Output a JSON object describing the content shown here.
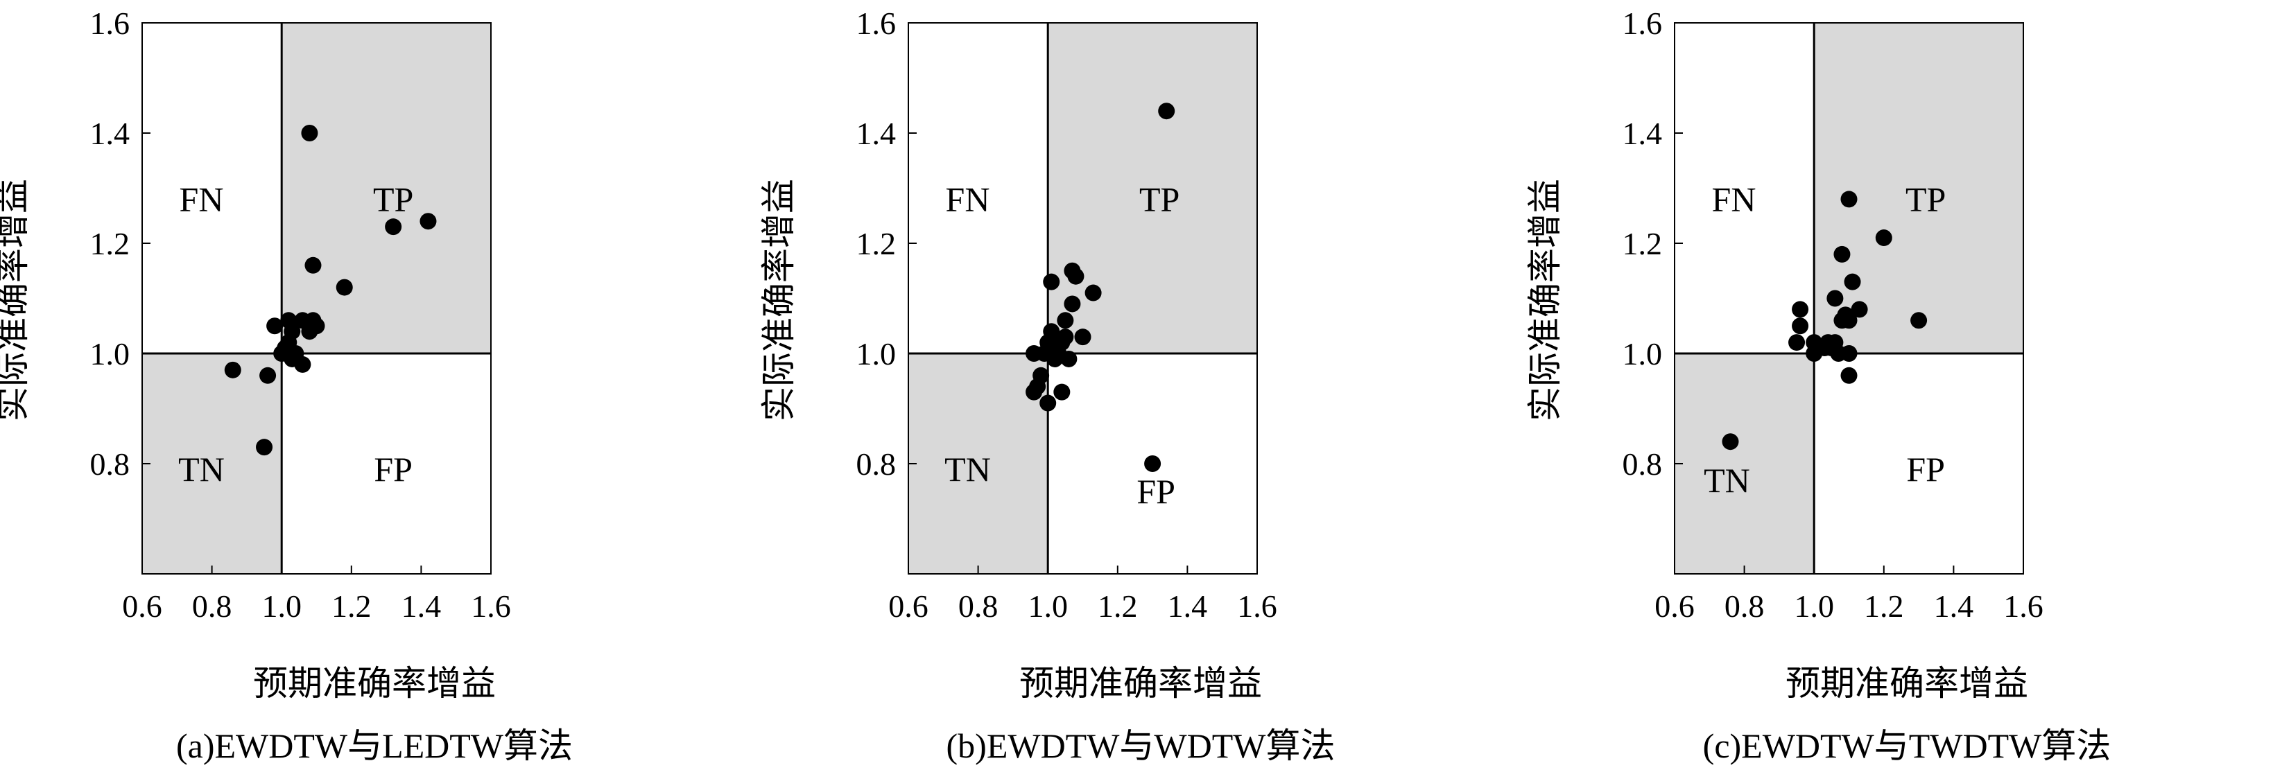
{
  "colors": {
    "shaded": "#d9d9d9",
    "point": "#000000",
    "frame": "#000000"
  },
  "chart_data": [
    {
      "type": "scatter",
      "caption": "(a)EWDTW与LEDTW算法",
      "xlabel": "预期准确率增益",
      "ylabel": "实际准确率增益",
      "xlim": [
        0.6,
        1.6
      ],
      "ylim": [
        0.6,
        1.6
      ],
      "xticks": [
        "0.6",
        "0.8",
        "1.0",
        "1.2",
        "1.4",
        "1.6"
      ],
      "yticks": [
        "0.8",
        "1.0",
        "1.2",
        "1.4",
        "1.6"
      ],
      "grid": false,
      "quadrant_lines": {
        "x": 1.0,
        "y": 1.0
      },
      "shaded_quadrants": [
        "TP",
        "TN"
      ],
      "quadrant_labels": [
        {
          "text": "FN",
          "x": 0.77,
          "y": 1.28
        },
        {
          "text": "TP",
          "x": 1.32,
          "y": 1.28
        },
        {
          "text": "TN",
          "x": 0.77,
          "y": 0.79
        },
        {
          "text": "FP",
          "x": 1.32,
          "y": 0.79
        }
      ],
      "points": [
        [
          0.86,
          0.97
        ],
        [
          0.95,
          0.83
        ],
        [
          0.96,
          0.96
        ],
        [
          0.98,
          1.05
        ],
        [
          1.0,
          1.0
        ],
        [
          1.01,
          1.01
        ],
        [
          1.02,
          1.06
        ],
        [
          1.02,
          1.02
        ],
        [
          1.03,
          1.04
        ],
        [
          1.04,
          1.0
        ],
        [
          1.03,
          0.99
        ],
        [
          1.06,
          0.98
        ],
        [
          1.06,
          1.06
        ],
        [
          1.08,
          1.04
        ],
        [
          1.1,
          1.05
        ],
        [
          1.09,
          1.06
        ],
        [
          1.09,
          1.16
        ],
        [
          1.08,
          1.4
        ],
        [
          1.18,
          1.12
        ],
        [
          1.32,
          1.23
        ],
        [
          1.42,
          1.24
        ]
      ]
    },
    {
      "type": "scatter",
      "caption": "(b)EWDTW与WDTW算法",
      "xlabel": "预期准确率增益",
      "ylabel": "实际准确率增益",
      "xlim": [
        0.6,
        1.6
      ],
      "ylim": [
        0.6,
        1.6
      ],
      "xticks": [
        "0.6",
        "0.8",
        "1.0",
        "1.2",
        "1.4",
        "1.6"
      ],
      "yticks": [
        "0.8",
        "1.0",
        "1.2",
        "1.4",
        "1.6"
      ],
      "grid": false,
      "quadrant_lines": {
        "x": 1.0,
        "y": 1.0
      },
      "shaded_quadrants": [
        "TP",
        "TN"
      ],
      "quadrant_labels": [
        {
          "text": "FN",
          "x": 0.77,
          "y": 1.28
        },
        {
          "text": "TP",
          "x": 1.32,
          "y": 1.28
        },
        {
          "text": "TN",
          "x": 0.77,
          "y": 0.79
        },
        {
          "text": "FP",
          "x": 1.31,
          "y": 0.75
        }
      ],
      "points": [
        [
          0.96,
          1.0
        ],
        [
          0.96,
          0.93
        ],
        [
          0.97,
          0.94
        ],
        [
          0.98,
          0.96
        ],
        [
          0.99,
          1.0
        ],
        [
          1.0,
          0.91
        ],
        [
          1.0,
          1.02
        ],
        [
          1.01,
          1.0
        ],
        [
          1.01,
          1.04
        ],
        [
          1.02,
          1.01
        ],
        [
          1.02,
          0.99
        ],
        [
          1.03,
          1.0
        ],
        [
          1.04,
          1.02
        ],
        [
          1.04,
          0.93
        ],
        [
          1.05,
          1.03
        ],
        [
          1.05,
          1.06
        ],
        [
          1.06,
          0.99
        ],
        [
          1.07,
          1.09
        ],
        [
          1.07,
          1.15
        ],
        [
          1.08,
          1.14
        ],
        [
          1.1,
          1.03
        ],
        [
          1.13,
          1.11
        ],
        [
          1.01,
          1.13
        ],
        [
          1.3,
          0.8
        ],
        [
          1.34,
          1.44
        ]
      ]
    },
    {
      "type": "scatter",
      "caption": "(c)EWDTW与TWDTW算法",
      "xlabel": "预期准确率增益",
      "ylabel": "实际准确率增益",
      "xlim": [
        0.6,
        1.6
      ],
      "ylim": [
        0.6,
        1.6
      ],
      "xticks": [
        "0.6",
        "0.8",
        "1.0",
        "1.2",
        "1.4",
        "1.6"
      ],
      "yticks": [
        "0.8",
        "1.0",
        "1.2",
        "1.4",
        "1.6"
      ],
      "grid": false,
      "quadrant_lines": {
        "x": 1.0,
        "y": 1.0
      },
      "shaded_quadrants": [
        "TP",
        "TN"
      ],
      "quadrant_labels": [
        {
          "text": "FN",
          "x": 0.77,
          "y": 1.28
        },
        {
          "text": "TP",
          "x": 1.32,
          "y": 1.28
        },
        {
          "text": "TN",
          "x": 0.75,
          "y": 0.77
        },
        {
          "text": "FP",
          "x": 1.32,
          "y": 0.79
        }
      ],
      "points": [
        [
          0.76,
          0.84
        ],
        [
          0.95,
          1.02
        ],
        [
          0.96,
          1.05
        ],
        [
          0.96,
          1.08
        ],
        [
          1.0,
          1.0
        ],
        [
          1.0,
          1.02
        ],
        [
          1.01,
          1.01
        ],
        [
          1.03,
          1.01
        ],
        [
          1.04,
          1.02
        ],
        [
          1.05,
          1.01
        ],
        [
          1.06,
          1.02
        ],
        [
          1.06,
          1.1
        ],
        [
          1.07,
          1.0
        ],
        [
          1.08,
          1.06
        ],
        [
          1.08,
          1.18
        ],
        [
          1.09,
          1.07
        ],
        [
          1.1,
          1.06
        ],
        [
          1.1,
          1.0
        ],
        [
          1.1,
          0.96
        ],
        [
          1.11,
          1.13
        ],
        [
          1.1,
          1.28
        ],
        [
          1.13,
          1.08
        ],
        [
          1.2,
          1.21
        ],
        [
          1.3,
          1.06
        ]
      ]
    }
  ]
}
